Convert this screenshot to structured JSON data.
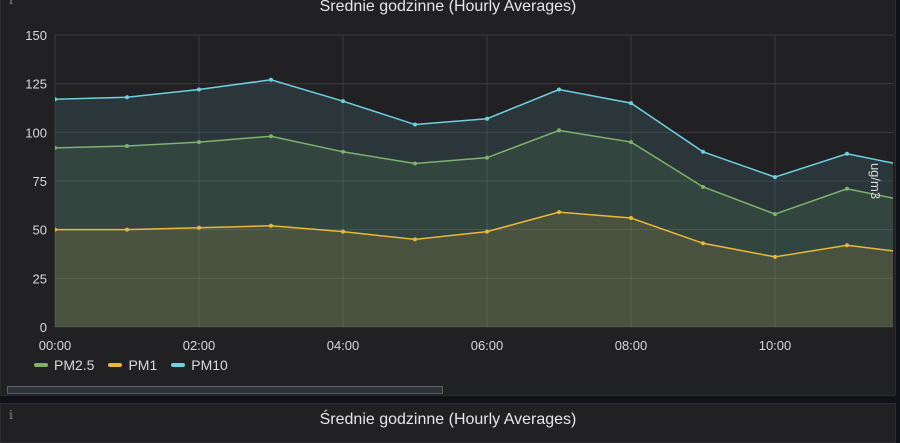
{
  "panel_top": {
    "title": "Średnie godzinne (Hourly Averages)",
    "info_icon": "info-icon"
  },
  "panel_bottom": {
    "title": "Średnie godzinne (Hourly Averages)",
    "info_icon": "info-icon"
  },
  "colors": {
    "PM2.5": "#7eb26d",
    "PM1": "#eab839",
    "PM10": "#6ed0e0",
    "grid": "#3a3a3e",
    "background": "#212124"
  },
  "chart_data": {
    "type": "area",
    "title": "Średnie godzinne (Hourly Averages)",
    "xlabel": "",
    "ylabel": "ug/m3",
    "x": [
      "00:00",
      "01:00",
      "02:00",
      "03:00",
      "04:00",
      "05:00",
      "06:00",
      "07:00",
      "08:00",
      "09:00",
      "10:00",
      "11:00",
      "11:40"
    ],
    "x_ticks": [
      "00:00",
      "02:00",
      "04:00",
      "06:00",
      "08:00",
      "10:00"
    ],
    "y_ticks": [
      0,
      25,
      50,
      75,
      100,
      125,
      150
    ],
    "ylim": [
      0,
      150
    ],
    "grid": true,
    "legend_position": "bottom-left",
    "series": [
      {
        "name": "PM2.5",
        "values": [
          92,
          93,
          95,
          98,
          90,
          84,
          87,
          101,
          95,
          72,
          58,
          71,
          66
        ]
      },
      {
        "name": "PM1",
        "values": [
          50,
          50,
          51,
          52,
          49,
          45,
          49,
          59,
          56,
          43,
          36,
          42,
          39
        ]
      },
      {
        "name": "PM10",
        "values": [
          117,
          118,
          122,
          127,
          116,
          104,
          107,
          122,
          115,
          90,
          77,
          89,
          84
        ]
      }
    ]
  },
  "legend": [
    {
      "label": "PM2.5",
      "color": "#7eb26d"
    },
    {
      "label": "PM1",
      "color": "#eab839"
    },
    {
      "label": "PM10",
      "color": "#6ed0e0"
    }
  ]
}
